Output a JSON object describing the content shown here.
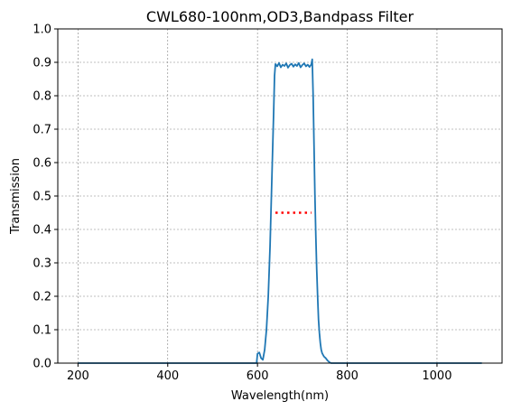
{
  "chart_data": {
    "type": "line",
    "title": "CWL680-100nm,OD3,Bandpass Filter",
    "xlabel": "Wavelength(nm)",
    "ylabel": "Transmission",
    "xlim": [
      155,
      1145
    ],
    "ylim": [
      0,
      1.0
    ],
    "xticks": [
      200,
      400,
      600,
      800,
      1000
    ],
    "yticks": [
      0.0,
      0.1,
      0.2,
      0.3,
      0.4,
      0.5,
      0.6,
      0.7,
      0.8,
      0.9,
      1.0
    ],
    "grid": true,
    "colors": {
      "series": "#1f77b4",
      "marker": "#ff0000",
      "grid": "#808080"
    },
    "series": [
      {
        "style": "solid",
        "x": [
          200,
          300,
          400,
          500,
          598,
          600,
          604,
          608,
          612,
          616,
          620,
          624,
          628,
          632,
          636,
          638,
          640,
          644,
          648,
          652,
          656,
          660,
          664,
          668,
          672,
          676,
          680,
          684,
          688,
          692,
          696,
          700,
          704,
          708,
          712,
          716,
          720,
          722,
          724,
          726,
          728,
          730,
          732,
          734,
          736,
          738,
          740,
          742,
          744,
          746,
          748,
          752,
          756,
          760,
          764,
          800,
          900,
          1000,
          1100
        ],
        "y": [
          0.0,
          0.0,
          0.0,
          0.0,
          0.0,
          0.028,
          0.032,
          0.015,
          0.01,
          0.04,
          0.1,
          0.2,
          0.35,
          0.55,
          0.75,
          0.86,
          0.895,
          0.888,
          0.898,
          0.885,
          0.893,
          0.889,
          0.897,
          0.884,
          0.892,
          0.896,
          0.887,
          0.894,
          0.889,
          0.898,
          0.885,
          0.892,
          0.897,
          0.888,
          0.893,
          0.886,
          0.894,
          0.909,
          0.8,
          0.65,
          0.5,
          0.38,
          0.28,
          0.2,
          0.13,
          0.09,
          0.06,
          0.04,
          0.03,
          0.025,
          0.02,
          0.015,
          0.008,
          0.003,
          0.0,
          0.0,
          0.0,
          0.0,
          0.0
        ]
      },
      {
        "style": "dotted",
        "x": [
          640,
          720
        ],
        "y": [
          0.45,
          0.45
        ]
      }
    ]
  }
}
